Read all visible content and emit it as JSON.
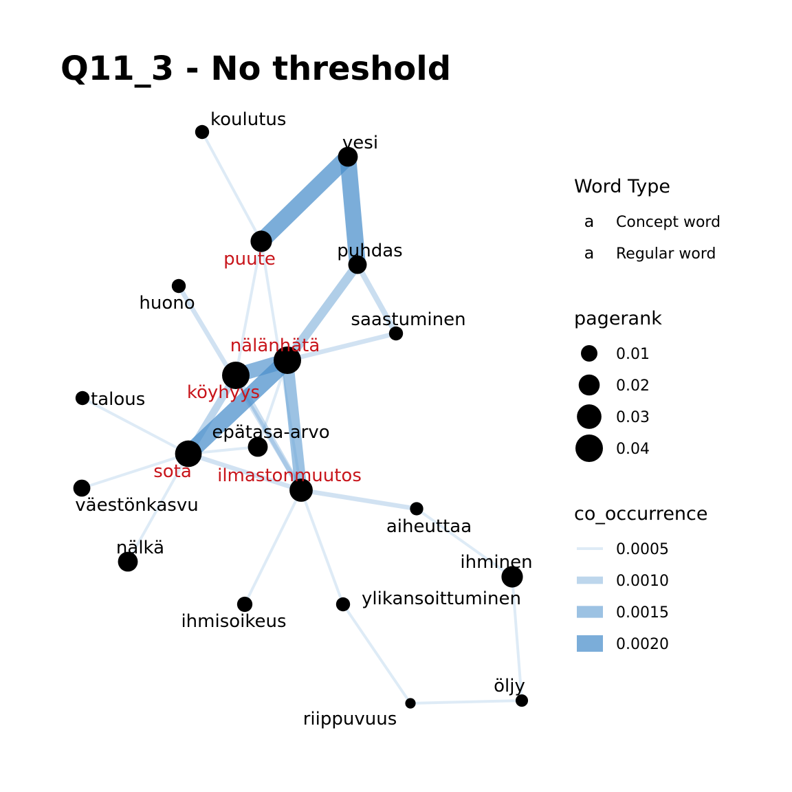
{
  "title": "Q11_3 - No threshold",
  "colors": {
    "concept": "#C8151B",
    "regular": "#000000",
    "node": "#000000",
    "edge": "#4A8FCB"
  },
  "nodes": [
    {
      "id": "koulutus",
      "label": "koulutus",
      "type": "regular",
      "pagerank": 0.006
    },
    {
      "id": "vesi",
      "label": "vesi",
      "type": "regular",
      "pagerank": 0.017
    },
    {
      "id": "puute",
      "label": "puute",
      "type": "concept",
      "pagerank": 0.021
    },
    {
      "id": "puhdas",
      "label": "puhdas",
      "type": "regular",
      "pagerank": 0.014
    },
    {
      "id": "huono",
      "label": "huono",
      "type": "regular",
      "pagerank": 0.006
    },
    {
      "id": "saastuminen",
      "label": "saastuminen",
      "type": "regular",
      "pagerank": 0.006
    },
    {
      "id": "nalanhata",
      "label": "nälänhätä",
      "type": "concept",
      "pagerank": 0.04
    },
    {
      "id": "koyhyys",
      "label": "köyhyys",
      "type": "concept",
      "pagerank": 0.04
    },
    {
      "id": "talous",
      "label": "talous",
      "type": "regular",
      "pagerank": 0.006
    },
    {
      "id": "epatasa",
      "label": "epätasa-arvo",
      "type": "regular",
      "pagerank": 0.017
    },
    {
      "id": "sota",
      "label": "sota",
      "type": "concept",
      "pagerank": 0.037
    },
    {
      "id": "vaestonkasvu",
      "label": "väestönkasvu",
      "type": "regular",
      "pagerank": 0.011
    },
    {
      "id": "ilmasto",
      "label": "ilmastonmuutos",
      "type": "concept",
      "pagerank": 0.026
    },
    {
      "id": "aiheuttaa",
      "label": "aiheuttaa",
      "type": "regular",
      "pagerank": 0.005
    },
    {
      "id": "nalka",
      "label": "nälkä",
      "type": "regular",
      "pagerank": 0.017
    },
    {
      "id": "ihminen",
      "label": "ihminen",
      "type": "regular",
      "pagerank": 0.021
    },
    {
      "id": "ihmisoikeus",
      "label": "ihmisoikeus",
      "type": "regular",
      "pagerank": 0.008
    },
    {
      "id": "ylikansoittuminen",
      "label": "ylikansoittuminen",
      "type": "regular",
      "pagerank": 0.006
    },
    {
      "id": "oljy",
      "label": "öljy",
      "type": "regular",
      "pagerank": 0.004
    },
    {
      "id": "riippuvuus",
      "label": "riippuvuus",
      "type": "regular",
      "pagerank": 0.002
    }
  ],
  "edges": [
    {
      "source": "koulutus",
      "target": "puute",
      "co_occurrence": 0.0005
    },
    {
      "source": "vesi",
      "target": "puute",
      "co_occurrence": 0.002
    },
    {
      "source": "vesi",
      "target": "puhdas",
      "co_occurrence": 0.002
    },
    {
      "source": "puute",
      "target": "koyhyys",
      "co_occurrence": 0.0005
    },
    {
      "source": "puute",
      "target": "ilmasto",
      "co_occurrence": 0.0005
    },
    {
      "source": "puhdas",
      "target": "nalanhata",
      "co_occurrence": 0.0012
    },
    {
      "source": "puhdas",
      "target": "saastuminen",
      "co_occurrence": 0.0008
    },
    {
      "source": "huono",
      "target": "ilmasto",
      "co_occurrence": 0.0007
    },
    {
      "source": "saastuminen",
      "target": "nalanhata",
      "co_occurrence": 0.0007
    },
    {
      "source": "nalanhata",
      "target": "sota",
      "co_occurrence": 0.002
    },
    {
      "source": "nalanhata",
      "target": "koyhyys",
      "co_occurrence": 0.0018
    },
    {
      "source": "nalanhata",
      "target": "ilmasto",
      "co_occurrence": 0.0015
    },
    {
      "source": "nalanhata",
      "target": "epatasa",
      "co_occurrence": 0.0005
    },
    {
      "source": "koyhyys",
      "target": "sota",
      "co_occurrence": 0.001
    },
    {
      "source": "koyhyys",
      "target": "ilmasto",
      "co_occurrence": 0.0008
    },
    {
      "source": "talous",
      "target": "sota",
      "co_occurrence": 0.0005
    },
    {
      "source": "sota",
      "target": "epatasa",
      "co_occurrence": 0.0005
    },
    {
      "source": "sota",
      "target": "vaestonkasvu",
      "co_occurrence": 0.0005
    },
    {
      "source": "sota",
      "target": "ilmasto",
      "co_occurrence": 0.0007
    },
    {
      "source": "sota",
      "target": "nalka",
      "co_occurrence": 0.0005
    },
    {
      "source": "ilmasto",
      "target": "aiheuttaa",
      "co_occurrence": 0.0007
    },
    {
      "source": "ilmasto",
      "target": "ihmisoikeus",
      "co_occurrence": 0.0005
    },
    {
      "source": "ilmasto",
      "target": "ylikansoittuminen",
      "co_occurrence": 0.0005
    },
    {
      "source": "aiheuttaa",
      "target": "ihminen",
      "co_occurrence": 0.0005
    },
    {
      "source": "ihminen",
      "target": "oljy",
      "co_occurrence": 0.0005
    },
    {
      "source": "ylikansoittuminen",
      "target": "riippuvuus",
      "co_occurrence": 0.0005
    },
    {
      "source": "riippuvuus",
      "target": "oljy",
      "co_occurrence": 0.0005
    }
  ],
  "legend": {
    "word_type": {
      "title": "Word Type",
      "items": [
        {
          "glyph": "a",
          "label": "Concept word",
          "type": "concept"
        },
        {
          "glyph": "a",
          "label": "Regular word",
          "type": "regular"
        }
      ]
    },
    "pagerank": {
      "title": "pagerank",
      "items": [
        {
          "label": "0.01",
          "value": 0.01
        },
        {
          "label": "0.02",
          "value": 0.02
        },
        {
          "label": "0.03",
          "value": 0.03
        },
        {
          "label": "0.04",
          "value": 0.04
        }
      ]
    },
    "co_occurrence": {
      "title": "co_occurrence",
      "items": [
        {
          "label": "0.0005",
          "value": 0.0005
        },
        {
          "label": "0.0010",
          "value": 0.001
        },
        {
          "label": "0.0015",
          "value": 0.0015
        },
        {
          "label": "0.0020",
          "value": 0.002
        }
      ]
    }
  }
}
